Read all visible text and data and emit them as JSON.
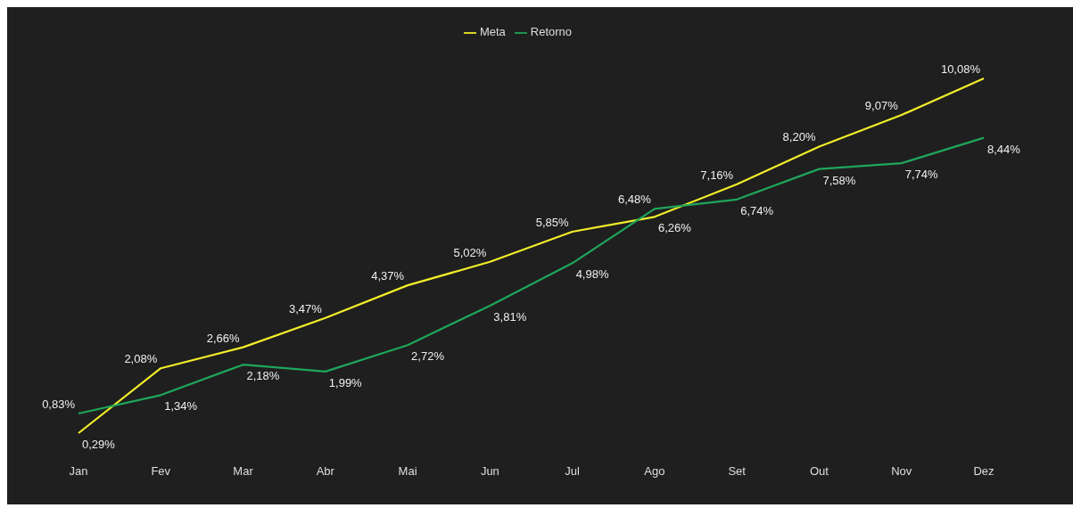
{
  "chart_data": {
    "type": "line",
    "categories": [
      "Jan",
      "Fev",
      "Mar",
      "Abr",
      "Mai",
      "Jun",
      "Jul",
      "Ago",
      "Set",
      "Out",
      "Nov",
      "Dez"
    ],
    "series": [
      {
        "name": "Meta",
        "color": "#f2ee2a",
        "values": [
          0.29,
          2.08,
          2.66,
          3.47,
          4.37,
          5.02,
          5.85,
          6.26,
          7.16,
          8.2,
          9.07,
          10.08
        ],
        "value_labels": [
          "0,29%",
          "2,08%",
          "2,66%",
          "3,47%",
          "4,37%",
          "5,02%",
          "5,85%",
          "6,26%",
          "7,16%",
          "8,20%",
          "9,07%",
          "10,08%"
        ]
      },
      {
        "name": "Retorno",
        "color": "#1fa65a",
        "values": [
          0.83,
          1.34,
          2.18,
          1.99,
          2.72,
          3.81,
          4.98,
          6.48,
          6.74,
          7.58,
          7.74,
          8.44
        ],
        "value_labels": [
          "0,83%",
          "1,34%",
          "2,18%",
          "1,99%",
          "2,72%",
          "3,81%",
          "4,98%",
          "6,48%",
          "6,74%",
          "7,58%",
          "7,74%",
          "8,44%"
        ]
      }
    ],
    "legend": "top",
    "grid": false,
    "marker": "none",
    "line_style": "solid"
  }
}
